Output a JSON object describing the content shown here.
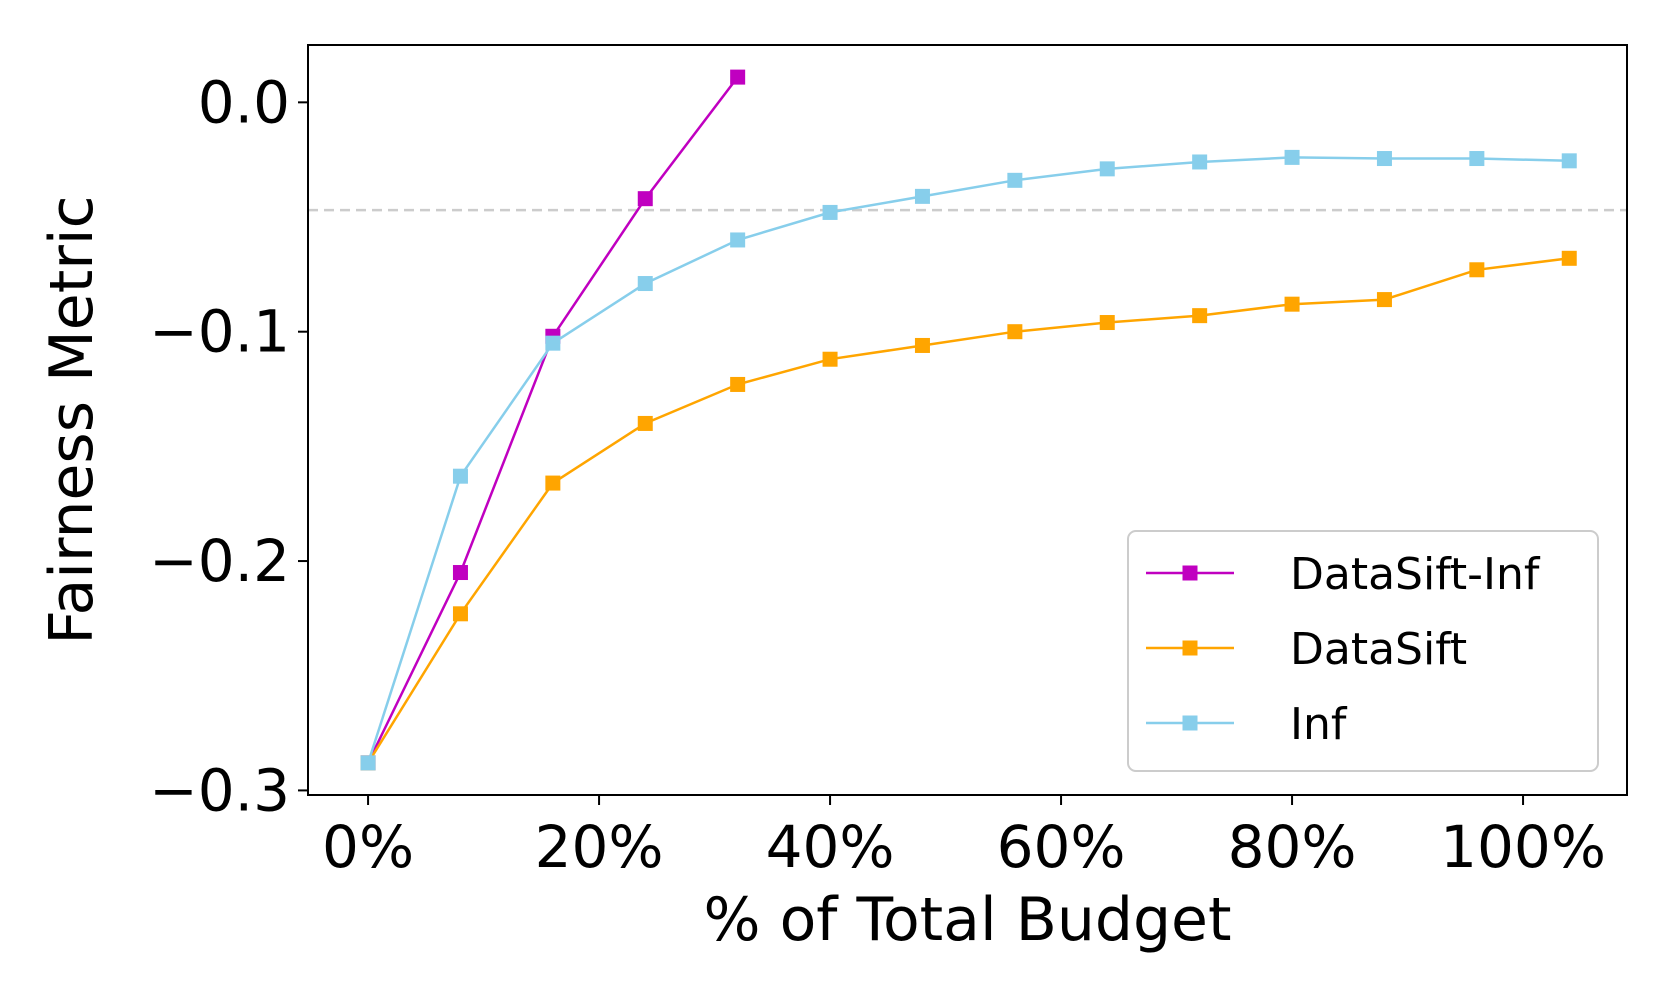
{
  "chart_data": {
    "type": "line",
    "xlabel": "% of Total Budget",
    "ylabel": "Fairness Metric",
    "xlim": [
      -0.052,
      1.09
    ],
    "ylim": [
      -0.302,
      0.025
    ],
    "x_ticks": [
      0,
      0.2,
      0.4,
      0.6,
      0.8,
      1.0
    ],
    "x_tick_labels": [
      "0%",
      "20%",
      "40%",
      "60%",
      "80%",
      "100%"
    ],
    "y_ticks": [
      0.0,
      -0.1,
      -0.2,
      -0.3
    ],
    "y_tick_labels": [
      "0.0",
      "−0.1",
      "−0.2",
      "−0.3"
    ],
    "reference_line": {
      "y": -0.047,
      "color": "#cccccc",
      "style": "dashed"
    },
    "grid": false,
    "legend_position": "lower-right",
    "series": [
      {
        "name": "DataSift-Inf",
        "color": "#c000c0",
        "marker": "square",
        "x": [
          0,
          0.08,
          0.16,
          0.24,
          0.32
        ],
        "y": [
          -0.288,
          -0.205,
          -0.102,
          -0.042,
          0.011
        ]
      },
      {
        "name": "DataSift",
        "color": "#ffa500",
        "marker": "square",
        "x": [
          0,
          0.08,
          0.16,
          0.24,
          0.32,
          0.4,
          0.48,
          0.56,
          0.64,
          0.72,
          0.8,
          0.88,
          0.96,
          1.04
        ],
        "y": [
          -0.288,
          -0.223,
          -0.166,
          -0.14,
          -0.123,
          -0.112,
          -0.106,
          -0.1,
          -0.096,
          -0.093,
          -0.088,
          -0.086,
          -0.073,
          -0.068
        ]
      },
      {
        "name": "Inf",
        "color": "#87ceeb",
        "marker": "square",
        "x": [
          0,
          0.08,
          0.16,
          0.24,
          0.32,
          0.4,
          0.48,
          0.56,
          0.64,
          0.72,
          0.8,
          0.88,
          0.96,
          1.04
        ],
        "y": [
          -0.288,
          -0.163,
          -0.105,
          -0.079,
          -0.06,
          -0.048,
          -0.041,
          -0.034,
          -0.029,
          -0.026,
          -0.024,
          -0.0245,
          -0.0245,
          -0.0255
        ]
      }
    ]
  }
}
